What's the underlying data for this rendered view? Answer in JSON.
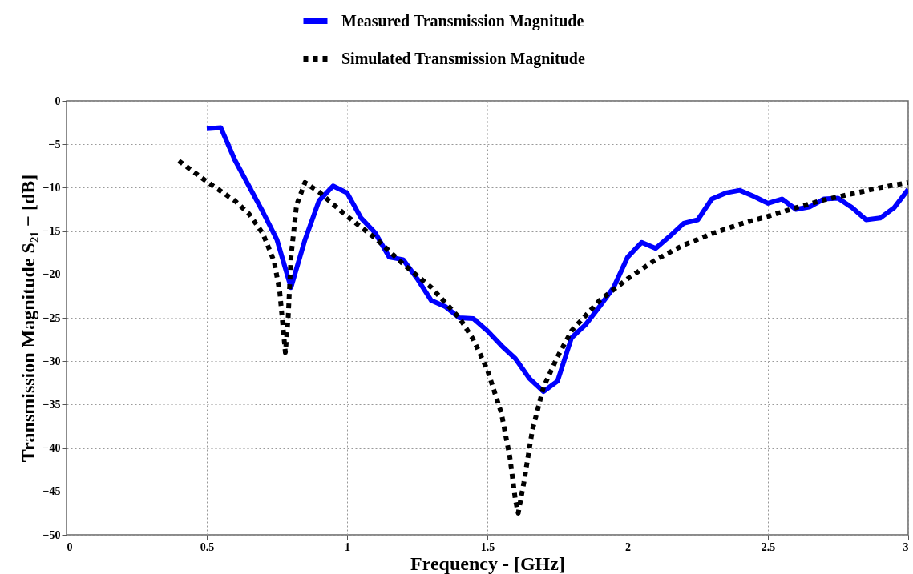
{
  "chart_data": {
    "type": "line",
    "xlabel": "Frequency - [GHz]",
    "ylabel": "Transmission Magnitude S₂₁ − [dB]",
    "xlim": [
      0,
      3
    ],
    "xticks": [
      0,
      0.5,
      1,
      1.5,
      2,
      2.5,
      3
    ],
    "ylim": [
      -50,
      0
    ],
    "yticks": [
      -50,
      -45,
      -40,
      -35,
      -30,
      -25,
      -20,
      -15,
      -10,
      -5,
      0
    ],
    "grid": true,
    "legend": "top",
    "marker": "none",
    "series": [
      {
        "name": "Measured Transmission Magnitude",
        "color": "#0000ff",
        "line_style": "solid",
        "x": [
          0.5,
          0.55,
          0.6,
          0.65,
          0.7,
          0.75,
          0.8,
          0.85,
          0.9,
          0.95,
          1.0,
          1.05,
          1.1,
          1.15,
          1.2,
          1.25,
          1.3,
          1.35,
          1.4,
          1.45,
          1.5,
          1.55,
          1.6,
          1.65,
          1.7,
          1.75,
          1.8,
          1.85,
          1.9,
          1.95,
          2.0,
          2.05,
          2.1,
          2.15,
          2.2,
          2.25,
          2.3,
          2.35,
          2.4,
          2.45,
          2.5,
          2.55,
          2.6,
          2.65,
          2.7,
          2.75,
          2.8,
          2.85,
          2.9,
          2.95,
          3.0
        ],
        "values": [
          -3.2,
          -3.1,
          -6.8,
          -9.8,
          -12.8,
          -16,
          -21.5,
          -16,
          -11.5,
          -9.8,
          -10.6,
          -13.5,
          -15.2,
          -18,
          -18.3,
          -20.5,
          -23,
          -23.7,
          -25,
          -25.1,
          -26.5,
          -28.2,
          -29.7,
          -32,
          -33.5,
          -32.3,
          -27.3,
          -25.8,
          -23.7,
          -21.5,
          -18,
          -16.3,
          -17,
          -15.6,
          -14.1,
          -13.7,
          -11.3,
          -10.6,
          -10.3,
          -11,
          -11.8,
          -11.3,
          -12.5,
          -12.2,
          -11.3,
          -11.2,
          -12.3,
          -13.7,
          -13.5,
          -12.3,
          -10.2
        ]
      },
      {
        "name": "Simulated Transmission Magnitude",
        "color": "#000000",
        "line_style": "dotted",
        "x": [
          0.4,
          0.5,
          0.6,
          0.65,
          0.7,
          0.74,
          0.76,
          0.78,
          0.79,
          0.8,
          0.82,
          0.85,
          0.9,
          1.0,
          1.1,
          1.2,
          1.3,
          1.4,
          1.45,
          1.5,
          1.55,
          1.58,
          1.6,
          1.61,
          1.63,
          1.66,
          1.7,
          1.75,
          1.8,
          1.9,
          2.0,
          2.1,
          2.2,
          2.3,
          2.4,
          2.5,
          2.6,
          2.7,
          2.8,
          2.9,
          3.0
        ],
        "values": [
          -6.9,
          -9.3,
          -11.5,
          -13,
          -15.3,
          -18.5,
          -22,
          -29,
          -25,
          -18,
          -12,
          -9.4,
          -10.5,
          -13.3,
          -15.8,
          -18.8,
          -21.5,
          -25,
          -27.5,
          -31,
          -36,
          -41,
          -46,
          -47.5,
          -44,
          -38,
          -33,
          -29.5,
          -26.5,
          -23,
          -20.5,
          -18.3,
          -16.6,
          -15.3,
          -14.2,
          -13.3,
          -12.3,
          -11.4,
          -10.7,
          -10,
          -9.4
        ]
      }
    ]
  }
}
